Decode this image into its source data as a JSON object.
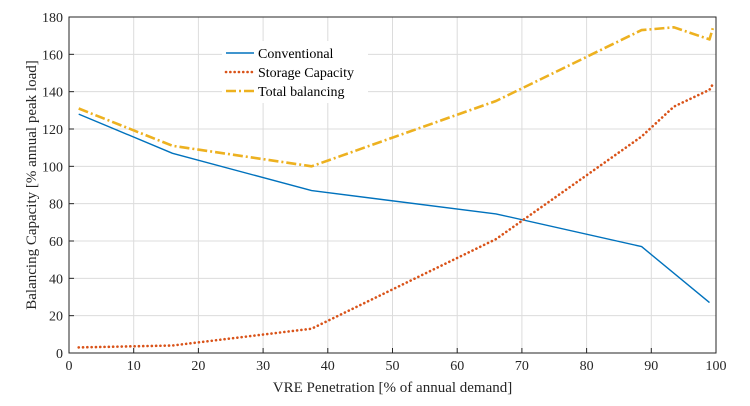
{
  "chart_data": {
    "type": "line",
    "title": "",
    "xlabel": "VRE Penetration [% of annual demand]",
    "ylabel": "Balancing Capacity [% annual peak load]",
    "xlim": [
      0,
      100
    ],
    "ylim": [
      0,
      180
    ],
    "xticks": [
      "0",
      "10",
      "20",
      "30",
      "40",
      "50",
      "60",
      "70",
      "80",
      "90",
      "100"
    ],
    "yticks": [
      "0",
      "20",
      "40",
      "60",
      "80",
      "100",
      "120",
      "140",
      "160",
      "180"
    ],
    "grid": true,
    "legend_position": "top-left",
    "series": [
      {
        "name": "Conventional",
        "color": "#0072BD",
        "style": "solid",
        "x": [
          1.5,
          16,
          37.5,
          66,
          88.5,
          99
        ],
        "y": [
          128,
          107,
          87,
          74.5,
          57,
          27
        ]
      },
      {
        "name": "Storage Capacity",
        "color": "#D95319",
        "style": "dotted",
        "x": [
          1.5,
          16,
          37.5,
          66,
          88.5,
          93.5,
          99,
          99.5
        ],
        "y": [
          3,
          4,
          13,
          61,
          116,
          132,
          141,
          144
        ]
      },
      {
        "name": "Total balancing",
        "color": "#EDB120",
        "style": "dashdot",
        "x": [
          1.5,
          16,
          37.5,
          66,
          88.5,
          93.5,
          99,
          99.5
        ],
        "y": [
          131,
          111,
          100,
          135,
          173,
          174.5,
          168,
          174
        ]
      }
    ]
  }
}
